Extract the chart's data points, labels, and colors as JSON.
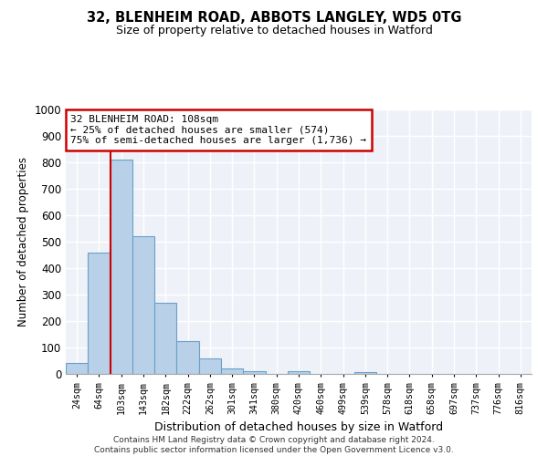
{
  "title_line1": "32, BLENHEIM ROAD, ABBOTS LANGLEY, WD5 0TG",
  "title_line2": "Size of property relative to detached houses in Watford",
  "xlabel": "Distribution of detached houses by size in Watford",
  "ylabel": "Number of detached properties",
  "categories": [
    "24sqm",
    "64sqm",
    "103sqm",
    "143sqm",
    "182sqm",
    "222sqm",
    "262sqm",
    "301sqm",
    "341sqm",
    "380sqm",
    "420sqm",
    "460sqm",
    "499sqm",
    "539sqm",
    "578sqm",
    "618sqm",
    "658sqm",
    "697sqm",
    "737sqm",
    "776sqm",
    "816sqm"
  ],
  "values": [
    42,
    460,
    810,
    520,
    270,
    125,
    57,
    22,
    11,
    0,
    11,
    0,
    0,
    8,
    0,
    0,
    0,
    0,
    0,
    0,
    0
  ],
  "bar_color": "#b8d0e8",
  "bar_edge_color": "#6aa0c8",
  "vline_index": 1.5,
  "vline_color": "#cc0000",
  "annotation_text": "32 BLENHEIM ROAD: 108sqm\n← 25% of detached houses are smaller (574)\n75% of semi-detached houses are larger (1,736) →",
  "annotation_box_color": "#ffffff",
  "annotation_box_edge": "#cc0000",
  "ylim": [
    0,
    1000
  ],
  "yticks": [
    0,
    100,
    200,
    300,
    400,
    500,
    600,
    700,
    800,
    900,
    1000
  ],
  "background_color": "#ffffff",
  "plot_bg_color": "#eef2f8",
  "grid_color": "#ffffff",
  "footer_line1": "Contains HM Land Registry data © Crown copyright and database right 2024.",
  "footer_line2": "Contains public sector information licensed under the Open Government Licence v3.0."
}
